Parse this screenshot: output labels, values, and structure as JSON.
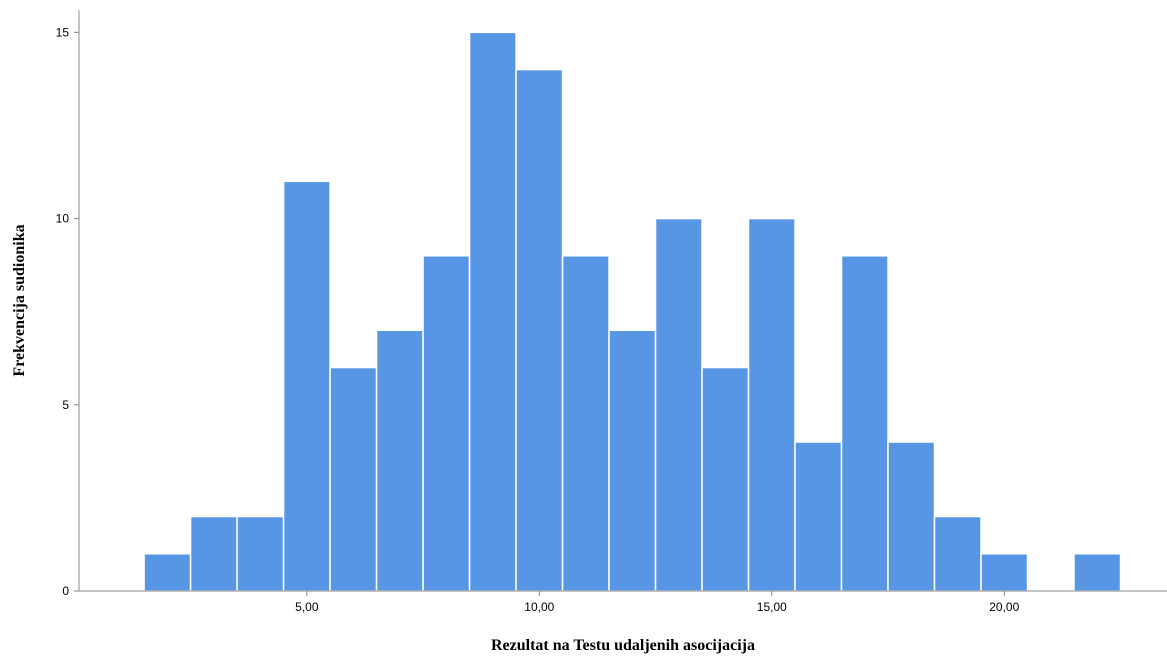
{
  "chart_data": {
    "type": "bar",
    "subtype": "histogram",
    "xlabel": "Rezultat na Testu udaljenih asocijacija",
    "ylabel": "Frekvencija sudionika",
    "bin_width": 1,
    "bins": [
      {
        "start": 1.5,
        "end": 2.5,
        "count": 1
      },
      {
        "start": 2.5,
        "end": 3.5,
        "count": 2
      },
      {
        "start": 3.5,
        "end": 4.5,
        "count": 2
      },
      {
        "start": 4.5,
        "end": 5.5,
        "count": 11
      },
      {
        "start": 5.5,
        "end": 6.5,
        "count": 6
      },
      {
        "start": 6.5,
        "end": 7.5,
        "count": 7
      },
      {
        "start": 7.5,
        "end": 8.5,
        "count": 9
      },
      {
        "start": 8.5,
        "end": 9.5,
        "count": 15
      },
      {
        "start": 9.5,
        "end": 10.5,
        "count": 14
      },
      {
        "start": 10.5,
        "end": 11.5,
        "count": 9
      },
      {
        "start": 11.5,
        "end": 12.5,
        "count": 7
      },
      {
        "start": 12.5,
        "end": 13.5,
        "count": 10
      },
      {
        "start": 13.5,
        "end": 14.5,
        "count": 6
      },
      {
        "start": 14.5,
        "end": 15.5,
        "count": 10
      },
      {
        "start": 15.5,
        "end": 16.5,
        "count": 4
      },
      {
        "start": 16.5,
        "end": 17.5,
        "count": 9
      },
      {
        "start": 17.5,
        "end": 18.5,
        "count": 4
      },
      {
        "start": 18.5,
        "end": 19.5,
        "count": 2
      },
      {
        "start": 19.5,
        "end": 20.5,
        "count": 1
      },
      {
        "start": 21.5,
        "end": 22.5,
        "count": 1
      }
    ],
    "xlim": [
      0.1,
      23.5
    ],
    "ylim": [
      0,
      15.6
    ],
    "x_ticks": [
      {
        "value": 5,
        "label": "5,00"
      },
      {
        "value": 10,
        "label": "10,00"
      },
      {
        "value": 15,
        "label": "15,00"
      },
      {
        "value": 20,
        "label": "20,00"
      }
    ],
    "y_ticks": [
      {
        "value": 0,
        "label": "0"
      },
      {
        "value": 5,
        "label": "5"
      },
      {
        "value": 10,
        "label": "10"
      },
      {
        "value": 15,
        "label": "15"
      }
    ],
    "grid": false,
    "legend": "none",
    "bar_color": "#5795e5",
    "axis_color": "#888888"
  }
}
